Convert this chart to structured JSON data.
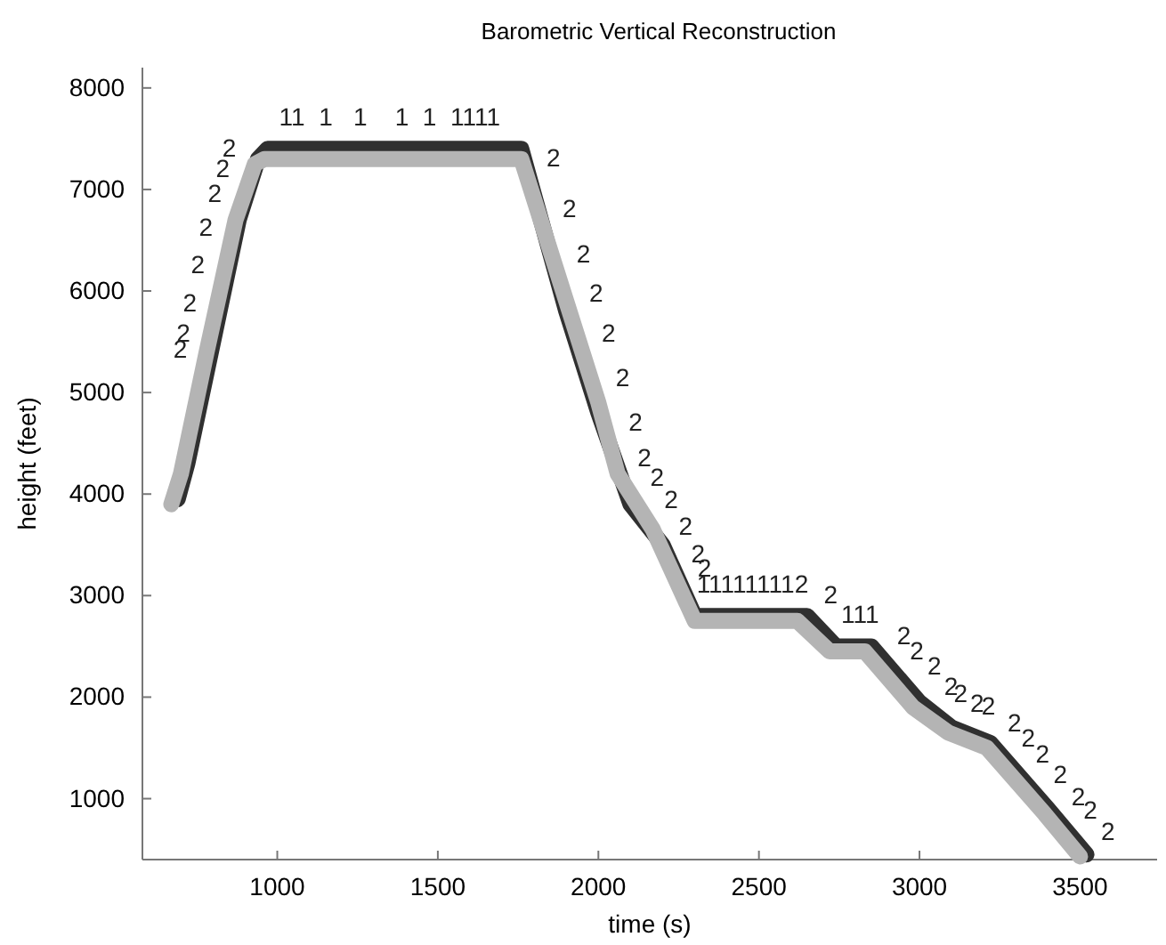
{
  "chart_data": {
    "type": "line",
    "title": "Barometric Vertical Reconstruction",
    "xlabel": "time (s)",
    "ylabel": "height (feet)",
    "xlim": [
      580,
      3740
    ],
    "xticks": [
      1000,
      1500,
      2000,
      2500,
      3000,
      3500
    ],
    "ylim": [
      400,
      8200
    ],
    "yticks": [
      1000,
      2000,
      3000,
      4000,
      5000,
      6000,
      7000,
      8000
    ],
    "grid": false,
    "series": [
      {
        "color": "#303030",
        "x": [
          690,
          720,
          800,
          880,
          940,
          970,
          1760,
          1900,
          2000,
          2100,
          2200,
          2300,
          2650,
          2740,
          2850,
          3000,
          3100,
          3220,
          3400,
          3520
        ],
        "values": [
          3950,
          4300,
          5500,
          6700,
          7300,
          7400,
          7400,
          5800,
          4800,
          3900,
          3500,
          2800,
          2800,
          2500,
          2500,
          1950,
          1700,
          1550,
          900,
          450
        ]
      },
      {
        "color": "#b4b4b4",
        "x": [
          670,
          700,
          780,
          870,
          930,
          960,
          1760,
          1800,
          1900,
          2000,
          2060,
          2170,
          2300,
          2620,
          2720,
          2830,
          2980,
          3090,
          3210,
          3390,
          3500
        ],
        "values": [
          3900,
          4200,
          5400,
          6700,
          7250,
          7300,
          7300,
          6900,
          5900,
          4900,
          4200,
          3650,
          2750,
          2750,
          2450,
          2450,
          1900,
          1650,
          1500,
          850,
          430
        ]
      }
    ],
    "annotations": [
      {
        "text": "2",
        "x": 790,
        "y": 5350
      },
      {
        "text": "2",
        "x": 800,
        "y": 5500
      },
      {
        "text": "2",
        "x": 820,
        "y": 5800
      },
      {
        "text": "2",
        "x": 845,
        "y": 6175
      },
      {
        "text": "2",
        "x": 870,
        "y": 6550
      },
      {
        "text": "2",
        "x": 895,
        "y": 6850
      },
      {
        "text": "2",
        "x": 920,
        "y": 7100
      },
      {
        "text": "2",
        "x": 940,
        "y": 7300
      },
      {
        "text": "11  1   1    1  1  1111",
        "x": 1350,
        "y": 7400
      },
      {
        "text": "2",
        "x": 1770,
        "y": 7200
      },
      {
        "text": "2",
        "x": 1820,
        "y": 6700
      },
      {
        "text": "2",
        "x": 1864,
        "y": 6260
      },
      {
        "text": "2",
        "x": 1903,
        "y": 5870
      },
      {
        "text": "2",
        "x": 1942,
        "y": 5480
      },
      {
        "text": "2",
        "x": 1986,
        "y": 5040
      },
      {
        "text": "2",
        "x": 2025,
        "y": 4610
      },
      {
        "text": "2",
        "x": 2064,
        "y": 4180
      },
      {
        "text": "2",
        "x": 2103,
        "y": 3990
      },
      {
        "text": "2",
        "x": 2147,
        "y": 3770
      },
      {
        "text": "2",
        "x": 2186,
        "y": 3540
      },
      {
        "text": "2",
        "x": 2225,
        "y": 3270
      },
      {
        "text": "2",
        "x": 2245,
        "y": 3130
      },
      {
        "text": "111111112",
        "x": 2480,
        "y": 2800
      },
      {
        "text": "2",
        "x": 2655,
        "y": 2780
      },
      {
        "text": "111",
        "x": 2815,
        "y": 2500
      },
      {
        "text": "2",
        "x": 2880,
        "y": 2390
      },
      {
        "text": "2",
        "x": 2920,
        "y": 2240
      },
      {
        "text": "2",
        "x": 2975,
        "y": 2090
      },
      {
        "text": "2",
        "x": 3040,
        "y": 1850
      },
      {
        "text": "2",
        "x": 3070,
        "y": 1780
      },
      {
        "text": "2",
        "x": 3145,
        "y": 1640
      },
      {
        "text": "2",
        "x": 3180,
        "y": 1620
      },
      {
        "text": "2",
        "x": 3225,
        "y": 1530
      },
      {
        "text": "2",
        "x": 3268,
        "y": 1380
      },
      {
        "text": "2",
        "x": 3312,
        "y": 1220
      },
      {
        "text": "2",
        "x": 3368,
        "y": 1020
      },
      {
        "text": "2",
        "x": 3423,
        "y": 810
      },
      {
        "text": "2",
        "x": 3460,
        "y": 680
      },
      {
        "text": "2",
        "x": 3515,
        "y": 470
      }
    ]
  }
}
